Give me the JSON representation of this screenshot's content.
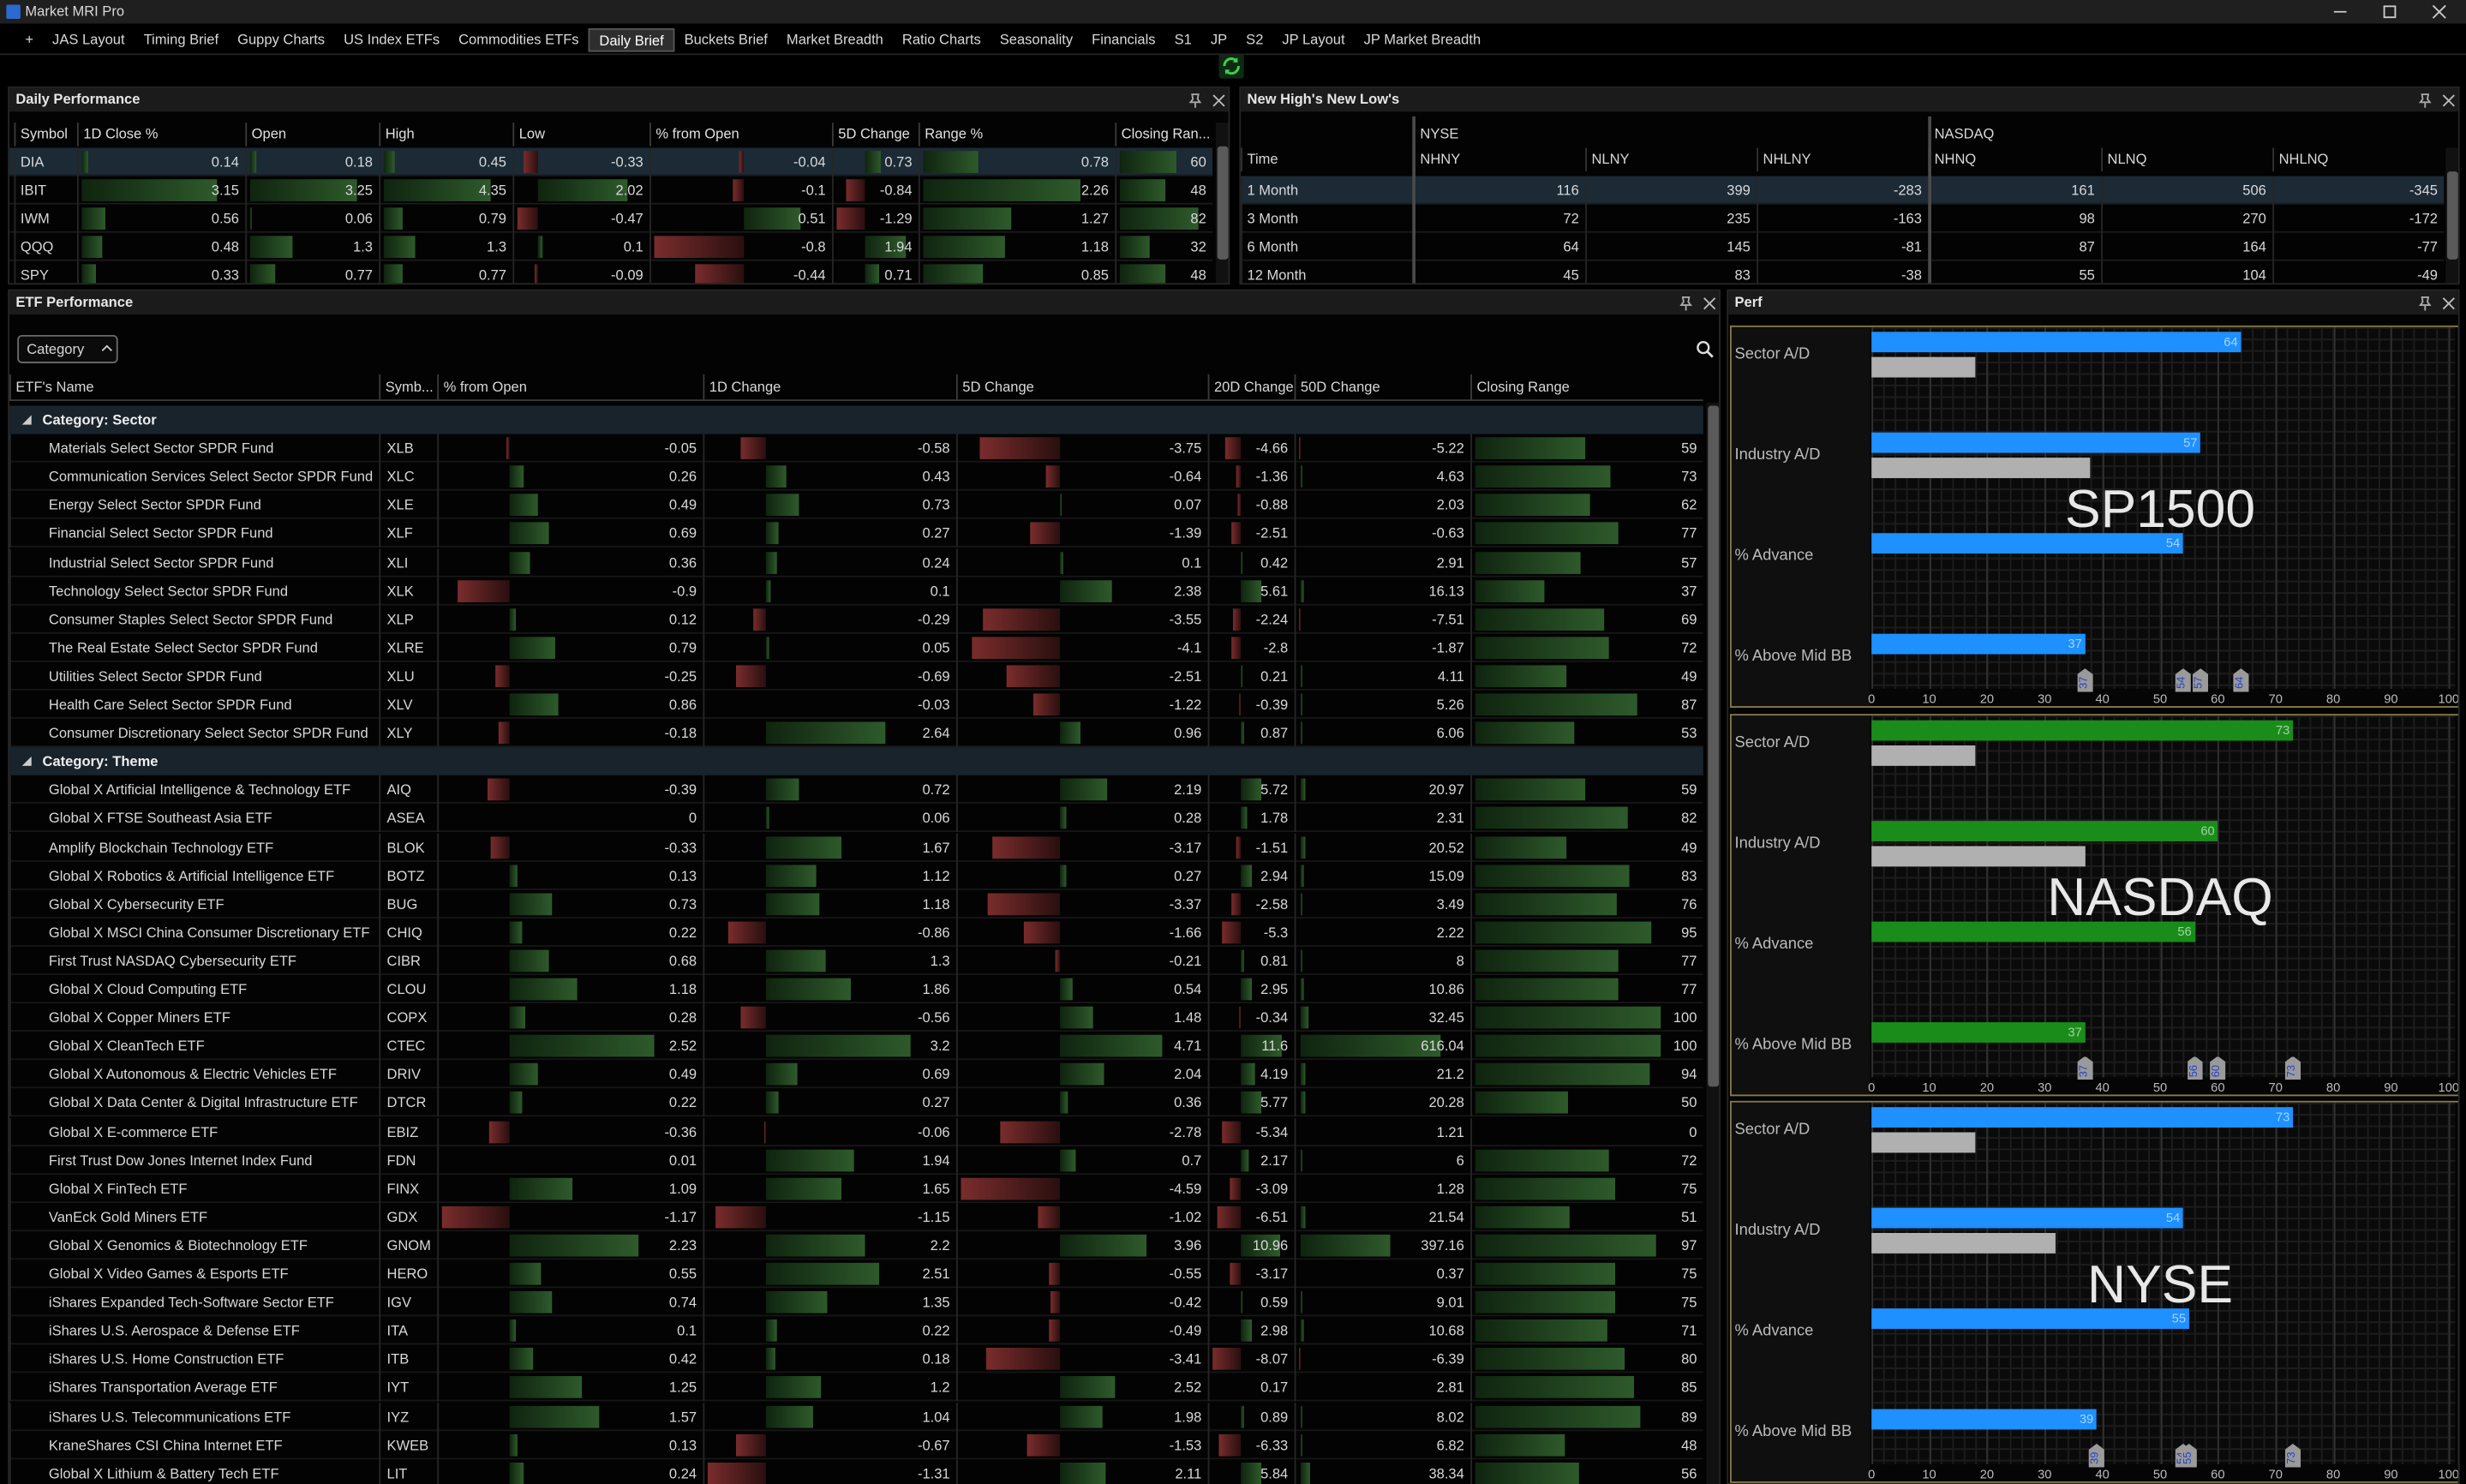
{
  "app": {
    "title": "Market MRI Pro",
    "tabs": [
      "+",
      "JAS Layout",
      "Timing Brief",
      "Guppy Charts",
      "US Index ETFs",
      "Commodities ETFs",
      "Daily Brief",
      "Buckets Brief",
      "Market Breadth",
      "Ratio Charts",
      "Seasonality",
      "Financials",
      "S1",
      "JP",
      "S2",
      "JP Layout",
      "JP Market Breadth"
    ],
    "active_tab": 6
  },
  "daily_performance": {
    "title": "Daily Performance",
    "columns": [
      "Symbol",
      "1D Close %",
      "Open",
      "High",
      "Low",
      "% from Open",
      "5D Change",
      "Range %",
      "Closing Ran..."
    ],
    "selected_row": 0,
    "rows": [
      [
        "DIA",
        0.14,
        0.18,
        0.45,
        -0.33,
        -0.04,
        0.73,
        0.78,
        60
      ],
      [
        "IBIT",
        3.15,
        3.25,
        4.35,
        2.02,
        -0.1,
        -0.84,
        2.26,
        48
      ],
      [
        "IWM",
        0.56,
        0.06,
        0.79,
        -0.47,
        0.51,
        -1.29,
        1.27,
        82
      ],
      [
        "QQQ",
        0.48,
        1.3,
        1.3,
        0.1,
        -0.8,
        1.94,
        1.18,
        32
      ],
      [
        "SPY",
        0.33,
        0.77,
        0.77,
        -0.09,
        -0.44,
        0.71,
        0.85,
        48
      ]
    ]
  },
  "new_highs_lows": {
    "title": "New High's New Low's",
    "groups": [
      "NYSE",
      "NASDAQ"
    ],
    "columns": [
      "Time",
      "NHNY",
      "NLNY",
      "NHLNY",
      "NHNQ",
      "NLNQ",
      "NHLNQ"
    ],
    "selected_row": 0,
    "rows": [
      [
        "1 Month",
        116,
        399,
        -283,
        161,
        506,
        -345
      ],
      [
        "3 Month",
        72,
        235,
        -163,
        98,
        270,
        -172
      ],
      [
        "6 Month",
        64,
        145,
        -81,
        87,
        164,
        -77
      ],
      [
        "12 Month",
        45,
        83,
        -38,
        55,
        104,
        -49
      ]
    ]
  },
  "etf_performance": {
    "title": "ETF Performance",
    "filter": "Category",
    "columns": [
      "ETF's Name",
      "Symb...",
      "% from Open",
      "1D Change",
      "5D Change",
      "20D Change",
      "50D Change",
      "Closing Range"
    ],
    "groups": [
      {
        "name": "Category: Sector",
        "rows": [
          [
            "Materials Select Sector SPDR Fund",
            "XLB",
            -0.05,
            -0.58,
            -3.75,
            -4.66,
            -5.22,
            59
          ],
          [
            "Communication Services Select Sector SPDR Fund",
            "XLC",
            0.26,
            0.43,
            -0.64,
            -1.36,
            4.63,
            73
          ],
          [
            "Energy Select Sector SPDR Fund",
            "XLE",
            0.49,
            0.73,
            0.07,
            -0.88,
            2.03,
            62
          ],
          [
            "Financial Select Sector SPDR Fund",
            "XLF",
            0.69,
            0.27,
            -1.39,
            -2.51,
            -0.63,
            77
          ],
          [
            "Industrial Select Sector SPDR Fund",
            "XLI",
            0.36,
            0.24,
            0.1,
            0.42,
            2.91,
            57
          ],
          [
            "Technology Select Sector SPDR Fund",
            "XLK",
            -0.9,
            0.1,
            2.38,
            5.61,
            16.13,
            37
          ],
          [
            "Consumer Staples Select Sector SPDR Fund",
            "XLP",
            0.12,
            -0.29,
            -3.55,
            -2.24,
            -7.51,
            69
          ],
          [
            "The Real Estate Select Sector SPDR Fund",
            "XLRE",
            0.79,
            0.05,
            -4.1,
            -2.8,
            -1.87,
            72
          ],
          [
            "Utilities Select Sector SPDR Fund",
            "XLU",
            -0.25,
            -0.69,
            -2.51,
            0.21,
            4.11,
            49
          ],
          [
            "Health Care Select Sector SPDR Fund",
            "XLV",
            0.86,
            -0.03,
            -1.22,
            -0.39,
            5.26,
            87
          ],
          [
            "Consumer Discretionary Select Sector SPDR Fund",
            "XLY",
            -0.18,
            2.64,
            0.96,
            0.87,
            6.06,
            53
          ]
        ]
      },
      {
        "name": "Category: Theme",
        "rows": [
          [
            "Global X Artificial Intelligence & Technology ETF",
            "AIQ",
            -0.39,
            0.72,
            2.19,
            5.72,
            20.97,
            59
          ],
          [
            "Global X FTSE Southeast Asia ETF",
            "ASEA",
            0,
            0.06,
            0.28,
            1.78,
            2.31,
            82
          ],
          [
            "Amplify Blockchain Technology ETF",
            "BLOK",
            -0.33,
            1.67,
            -3.17,
            -1.51,
            20.52,
            49
          ],
          [
            "Global X Robotics & Artificial Intelligence ETF",
            "BOTZ",
            0.13,
            1.12,
            0.27,
            2.94,
            15.09,
            83
          ],
          [
            "Global X Cybersecurity ETF",
            "BUG",
            0.73,
            1.18,
            -3.37,
            -2.58,
            3.49,
            76
          ],
          [
            "Global X MSCI China Consumer Discretionary ETF",
            "CHIQ",
            0.22,
            -0.86,
            -1.66,
            -5.3,
            2.22,
            95
          ],
          [
            "First Trust NASDAQ Cybersecurity ETF",
            "CIBR",
            0.68,
            1.3,
            -0.21,
            0.81,
            8,
            77
          ],
          [
            "Global X Cloud Computing ETF",
            "CLOU",
            1.18,
            1.86,
            0.54,
            2.95,
            10.86,
            77
          ],
          [
            "Global X Copper Miners ETF",
            "COPX",
            0.28,
            -0.56,
            1.48,
            -0.34,
            32.45,
            100
          ],
          [
            "Global X CleanTech ETF",
            "CTEC",
            2.52,
            3.2,
            4.71,
            11.6,
            616.04,
            100
          ],
          [
            "Global X Autonomous & Electric Vehicles ETF",
            "DRIV",
            0.49,
            0.69,
            2.04,
            4.19,
            21.2,
            94
          ],
          [
            "Global X Data Center & Digital Infrastructure ETF",
            "DTCR",
            0.22,
            0.27,
            0.36,
            5.77,
            20.28,
            50
          ],
          [
            "Global X E-commerce ETF",
            "EBIZ",
            -0.36,
            -0.06,
            -2.78,
            -5.34,
            1.21,
            0
          ],
          [
            "First Trust Dow Jones Internet Index Fund",
            "FDN",
            0.01,
            1.94,
            0.7,
            2.17,
            6,
            72
          ],
          [
            "Global X FinTech ETF",
            "FINX",
            1.09,
            1.65,
            -4.59,
            -3.09,
            1.28,
            75
          ],
          [
            "VanEck Gold Miners ETF",
            "GDX",
            -1.17,
            -1.15,
            -1.02,
            -6.51,
            21.54,
            51
          ],
          [
            "Global X Genomics & Biotechnology ETF",
            "GNOM",
            2.23,
            2.2,
            3.96,
            10.96,
            397.16,
            97
          ],
          [
            "Global X Video Games & Esports ETF",
            "HERO",
            0.55,
            2.51,
            -0.55,
            -3.17,
            0.37,
            75
          ],
          [
            "iShares Expanded Tech-Software Sector ETF",
            "IGV",
            0.74,
            1.35,
            -0.42,
            0.59,
            9.01,
            75
          ],
          [
            "iShares U.S. Aerospace & Defense ETF",
            "ITA",
            0.1,
            0.22,
            -0.49,
            2.98,
            10.68,
            71
          ],
          [
            "iShares U.S. Home Construction ETF",
            "ITB",
            0.42,
            0.18,
            -3.41,
            -8.07,
            -6.39,
            80
          ],
          [
            "iShares Transportation Average ETF",
            "IYT",
            1.25,
            1.2,
            2.52,
            0.17,
            2.81,
            85
          ],
          [
            "iShares U.S. Telecommunications ETF",
            "IYZ",
            1.57,
            1.04,
            1.98,
            0.89,
            8.02,
            89
          ],
          [
            "KraneShares CSI China Internet ETF",
            "KWEB",
            0.13,
            -0.67,
            -1.53,
            -6.33,
            6.82,
            48
          ],
          [
            "Global X Lithium & Battery Tech ETF",
            "LIT",
            0.24,
            -1.31,
            2.11,
            5.84,
            38.34,
            56
          ]
        ]
      }
    ]
  },
  "perf": {
    "title": "Perf",
    "xlim": [
      0,
      100
    ],
    "xticks": [
      0,
      10,
      20,
      30,
      40,
      50,
      60,
      70,
      80,
      90,
      100
    ],
    "panels": [
      {
        "name": "SP1500",
        "color": "#1e90ff",
        "secondary_color": "#b0b0b0",
        "categories": [
          "Sector A/D",
          "Industry A/D",
          "% Advance",
          "% Above Mid BB"
        ],
        "values": [
          64,
          57,
          54,
          37
        ],
        "secondary_values": [
          18,
          38,
          null,
          null
        ]
      },
      {
        "name": "NASDAQ",
        "color": "#1a8c1a",
        "secondary_color": "#b0b0b0",
        "categories": [
          "Sector A/D",
          "Industry A/D",
          "% Advance",
          "% Above Mid BB"
        ],
        "values": [
          73,
          60,
          56,
          37
        ],
        "secondary_values": [
          18,
          37,
          null,
          null
        ]
      },
      {
        "name": "NYSE",
        "color": "#1e90ff",
        "secondary_color": "#b0b0b0",
        "categories": [
          "Sector A/D",
          "Industry A/D",
          "% Advance",
          "% Above Mid BB"
        ],
        "values": [
          73,
          54,
          55,
          39
        ],
        "secondary_values": [
          18,
          32,
          null,
          null
        ]
      }
    ]
  }
}
